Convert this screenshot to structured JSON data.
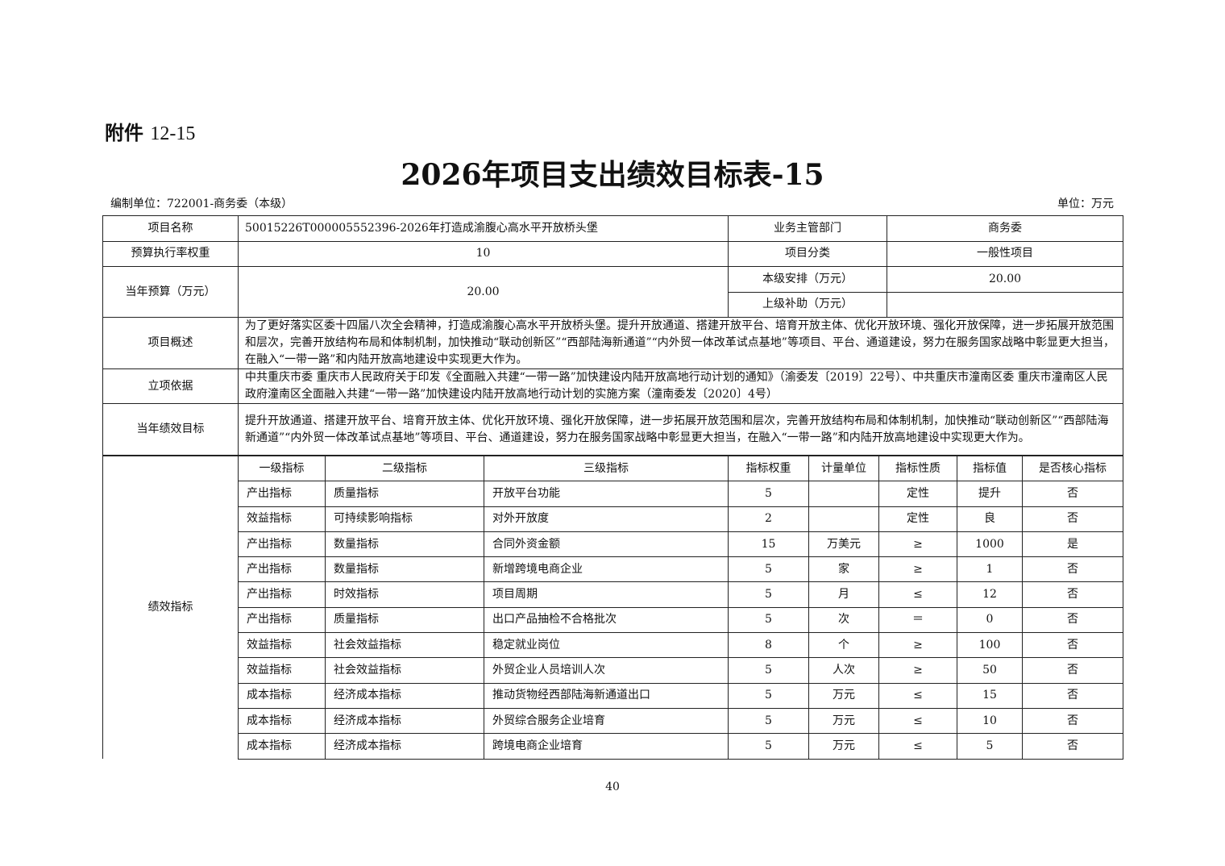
{
  "attachment": {
    "label": "附件",
    "number": "12-15"
  },
  "title": "2026年项目支出绩效目标表-15",
  "unit_org": "编制单位：722001-商务委（本级）",
  "unit_money": "单位：万元",
  "info": {
    "project_name_label": "项目名称",
    "project_name": "50015226T000005552396-2026年打造成渝腹心高水平开放桥头堡",
    "dept_label": "业务主管部门",
    "dept": "商务委",
    "weight_label": "预算执行率权重",
    "weight": "10",
    "category_label": "项目分类",
    "category": "一般性项目",
    "budget_label": "当年预算（万元）",
    "budget": "20.00",
    "local_label": "本级安排（万元）",
    "local": "20.00",
    "upper_label": "上级补助（万元）",
    "upper": "",
    "overview_label": "项目概述",
    "overview": "为了更好落实区委十四届八次全会精神，打造成渝腹心高水平开放桥头堡。提升开放通道、搭建开放平台、培育开放主体、优化开放环境、强化开放保障，进一步拓展开放范围和层次，完善开放结构布局和体制机制，加快推动“联动创新区”“西部陆海新通道”“内外贸一体改革试点基地”等项目、平台、通道建设，努力在服务国家战略中彰显更大担当，在融入“一带一路”和内陆开放高地建设中实现更大作为。",
    "basis_label": "立项依据",
    "basis": "中共重庆市委 重庆市人民政府关于印发《全面融入共建“一带一路”加快建设内陆开放高地行动计划的通知》（渝委发〔2019〕22号）、中共重庆市潼南区委 重庆市潼南区人民政府潼南区全面融入共建“一带一路”加快建设内陆开放高地行动计划的实施方案（潼南委发〔2020〕4号）",
    "goal_label": "当年绩效目标",
    "goal": "提升开放通道、搭建开放平台、培育开放主体、优化开放环境、强化开放保障，进一步拓展开放范围和层次，完善开放结构布局和体制机制，加快推动“联动创新区”“西部陆海新通道”“内外贸一体改革试点基地”等项目、平台、通道建设，努力在服务国家战略中彰显更大担当，在融入“一带一路”和内陆开放高地建设中实现更大作为。"
  },
  "indicators": {
    "label": "绩效指标",
    "headers": [
      "一级指标",
      "二级指标",
      "三级指标",
      "指标权重",
      "计量单位",
      "指标性质",
      "指标值",
      "是否核心指标"
    ],
    "rows": [
      [
        "产出指标",
        "质量指标",
        "开放平台功能",
        "5",
        "",
        "定性",
        "提升",
        "否"
      ],
      [
        "效益指标",
        "可持续影响指标",
        "对外开放度",
        "2",
        "",
        "定性",
        "良",
        "否"
      ],
      [
        "产出指标",
        "数量指标",
        "合同外资金额",
        "15",
        "万美元",
        "≥",
        "1000",
        "是"
      ],
      [
        "产出指标",
        "数量指标",
        "新增跨境电商企业",
        "5",
        "家",
        "≥",
        "1",
        "否"
      ],
      [
        "产出指标",
        "时效指标",
        "项目周期",
        "5",
        "月",
        "≤",
        "12",
        "否"
      ],
      [
        "产出指标",
        "质量指标",
        "出口产品抽检不合格批次",
        "5",
        "次",
        "＝",
        "0",
        "否"
      ],
      [
        "效益指标",
        "社会效益指标",
        "稳定就业岗位",
        "8",
        "个",
        "≥",
        "100",
        "否"
      ],
      [
        "效益指标",
        "社会效益指标",
        "外贸企业人员培训人次",
        "5",
        "人次",
        "≥",
        "50",
        "否"
      ],
      [
        "成本指标",
        "经济成本指标",
        "推动货物经西部陆海新通道出口",
        "5",
        "万元",
        "≤",
        "15",
        "否"
      ],
      [
        "成本指标",
        "经济成本指标",
        "外贸综合服务企业培育",
        "5",
        "万元",
        "≤",
        "10",
        "否"
      ],
      [
        "成本指标",
        "经济成本指标",
        "跨境电商企业培育",
        "5",
        "万元",
        "≤",
        "5",
        "否"
      ]
    ]
  },
  "page_number": "40"
}
